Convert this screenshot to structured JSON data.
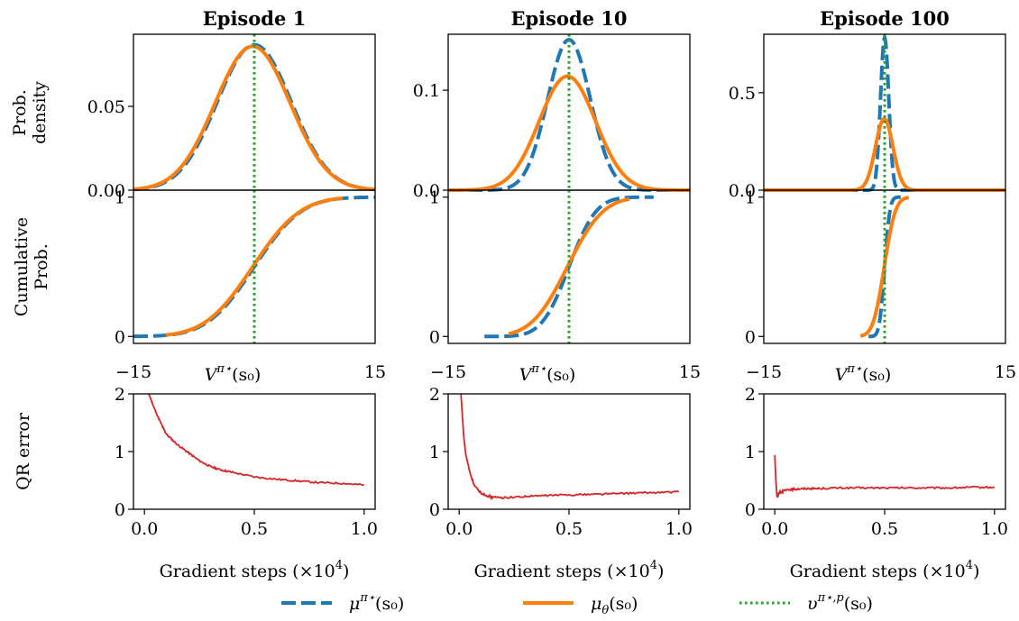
{
  "legend": {
    "items": [
      {
        "label": "μ^{π⋆}(s₀)",
        "main": "μ",
        "sup": "π⋆",
        "suffix": "(s₀)",
        "color": "#1f77b4",
        "style": "dashed"
      },
      {
        "label": "μ_θ(s₀)",
        "main": "μ",
        "sub": "θ",
        "suffix": "(s₀)",
        "color": "#ff7f0e",
        "style": "solid"
      },
      {
        "label": "υ^{π⋆,p}(s₀)",
        "main": "υ",
        "sup": "π⋆,p",
        "suffix": "(s₀)",
        "color": "#2ca02c",
        "style": "dotted"
      }
    ]
  },
  "row_labels": {
    "density": [
      "Prob.",
      "density"
    ],
    "cdf": [
      "Cumulative",
      "Prob."
    ],
    "qr": [
      "QR error"
    ]
  },
  "colors": {
    "blue": "#1f77b4",
    "orange": "#ff7f0e",
    "green": "#2ca02c",
    "red": "#d62728"
  },
  "chart_data": [
    {
      "type": "line",
      "title": "Episode 1",
      "density": {
        "ylim": [
          0,
          0.093
        ],
        "yticks": [
          0.0,
          0.05
        ],
        "ytick_labels": [
          "0.00",
          "0.05"
        ],
        "series": [
          {
            "color": "blue",
            "style": "dashed",
            "mean": 0.0,
            "std": 4.6
          },
          {
            "color": "orange",
            "style": "solid",
            "mean": -0.2,
            "std": 4.65
          }
        ]
      },
      "cdf": {
        "ylim": [
          -0.05,
          1.05
        ],
        "yticks": [
          0,
          1
        ],
        "ytick_labels": [
          "0",
          "1"
        ],
        "series": [
          {
            "color": "blue",
            "style": "dashed",
            "mean": 0.0,
            "std": 4.6,
            "range": [
              -15,
              15
            ]
          },
          {
            "color": "orange",
            "style": "solid",
            "mean": -0.2,
            "std": 4.65,
            "range": [
              -11,
              11
            ]
          }
        ]
      },
      "xlim": [
        -15,
        15
      ],
      "xtick_labels": [
        "−15",
        "15"
      ],
      "xlabel": {
        "main": "V",
        "sup": "π⋆",
        "suffix": "(s₀)"
      },
      "vline_x": 0.0,
      "qr": {
        "ylim": [
          0,
          2
        ],
        "yticks": [
          0,
          1,
          2
        ],
        "ytick_labels": [
          "0",
          "1",
          "2"
        ],
        "xlim": [
          -0.05,
          1.05
        ],
        "xticks": [
          0.0,
          0.5,
          1.0
        ],
        "xtick_labels": [
          "0.0",
          "0.5",
          "1.0"
        ],
        "xlabel": "Gradient steps (×10",
        "xlabel_sup": "4",
        "xlabel_end": ")",
        "x": [
          0.0,
          0.02,
          0.05,
          0.08,
          0.1,
          0.15,
          0.2,
          0.25,
          0.3,
          0.35,
          0.4,
          0.5,
          0.6,
          0.7,
          0.8,
          0.9,
          1.0
        ],
        "y": [
          2.3,
          2.0,
          1.7,
          1.45,
          1.3,
          1.12,
          0.98,
          0.84,
          0.74,
          0.68,
          0.64,
          0.56,
          0.52,
          0.49,
          0.46,
          0.45,
          0.42
        ]
      }
    },
    {
      "type": "line",
      "title": "Episode 10",
      "density": {
        "ylim": [
          0,
          0.156
        ],
        "yticks": [
          0.0,
          0.1
        ],
        "ytick_labels": [
          "0.0",
          "0.1"
        ],
        "series": [
          {
            "color": "blue",
            "style": "dashed",
            "mean": 0.0,
            "std": 2.65
          },
          {
            "color": "orange",
            "style": "solid",
            "mean": -0.2,
            "std": 3.5
          }
        ]
      },
      "cdf": {
        "ylim": [
          -0.05,
          1.05
        ],
        "yticks": [
          0,
          1
        ],
        "ytick_labels": [
          "0",
          "1"
        ],
        "series": [
          {
            "color": "blue",
            "style": "dashed",
            "mean": 0.0,
            "std": 2.65,
            "range": [
              -10.5,
              10.5
            ]
          },
          {
            "color": "orange",
            "style": "solid",
            "mean": -0.2,
            "std": 3.5,
            "range": [
              -7.5,
              7.5
            ]
          }
        ]
      },
      "xlim": [
        -15,
        15
      ],
      "xtick_labels": [
        "−15",
        "15"
      ],
      "xlabel": {
        "main": "V",
        "sup": "π⋆",
        "suffix": "(s₀)"
      },
      "vline_x": 0.0,
      "qr": {
        "ylim": [
          0,
          2
        ],
        "yticks": [
          0,
          1,
          2
        ],
        "ytick_labels": [
          "0",
          "1",
          "2"
        ],
        "xlim": [
          -0.05,
          1.05
        ],
        "xticks": [
          0.0,
          0.5,
          1.0
        ],
        "xtick_labels": [
          "0.0",
          "0.5",
          "1.0"
        ],
        "xlabel": "Gradient steps (×10",
        "xlabel_sup": "4",
        "xlabel_end": ")",
        "x": [
          0.0,
          0.01,
          0.02,
          0.03,
          0.05,
          0.07,
          0.1,
          0.13,
          0.15,
          0.2,
          0.3,
          0.4,
          0.5,
          0.6,
          0.7,
          0.8,
          0.9,
          1.0
        ],
        "y": [
          2.3,
          1.9,
          1.3,
          0.95,
          0.62,
          0.4,
          0.28,
          0.23,
          0.21,
          0.2,
          0.22,
          0.24,
          0.25,
          0.26,
          0.27,
          0.28,
          0.29,
          0.3
        ]
      }
    },
    {
      "type": "line",
      "title": "Episode 100",
      "density": {
        "ylim": [
          0,
          0.8
        ],
        "yticks": [
          0.0,
          0.5
        ],
        "ytick_labels": [
          "0.0",
          "0.5"
        ],
        "series": [
          {
            "color": "blue",
            "style": "dashed",
            "mean": 0.0,
            "std": 0.51
          },
          {
            "color": "orange",
            "style": "solid",
            "mean": -0.05,
            "std": 1.09
          }
        ]
      },
      "cdf": {
        "ylim": [
          -0.05,
          1.05
        ],
        "yticks": [
          0,
          1
        ],
        "ytick_labels": [
          "0",
          "1"
        ],
        "series": [
          {
            "color": "blue",
            "style": "dashed",
            "mean": 0.0,
            "std": 0.51,
            "range": [
              -2.0,
              2.0
            ]
          },
          {
            "color": "orange",
            "style": "solid",
            "mean": -0.05,
            "std": 1.09,
            "range": [
              -3.0,
              3.0
            ]
          }
        ]
      },
      "xlim": [
        -15,
        15
      ],
      "xtick_labels": [
        "−15",
        "15"
      ],
      "xlabel": {
        "main": "V",
        "sup": "π⋆",
        "suffix": "(s₀)"
      },
      "vline_x": 0.0,
      "qr": {
        "ylim": [
          0,
          2
        ],
        "yticks": [
          0,
          1,
          2
        ],
        "ytick_labels": [
          "0",
          "1",
          "2"
        ],
        "xlim": [
          -0.05,
          1.05
        ],
        "xticks": [
          0.0,
          0.5,
          1.0
        ],
        "xtick_labels": [
          "0.0",
          "0.5",
          "1.0"
        ],
        "xlabel": "Gradient steps (×10",
        "xlabel_sup": "4",
        "xlabel_end": ")",
        "x": [
          0.0,
          0.005,
          0.01,
          0.015,
          0.02,
          0.04,
          0.07,
          0.1,
          0.15,
          0.2,
          0.3,
          0.4,
          0.5,
          0.6,
          0.7,
          0.8,
          0.9,
          1.0
        ],
        "y": [
          0.95,
          0.5,
          0.22,
          0.25,
          0.28,
          0.32,
          0.34,
          0.35,
          0.36,
          0.36,
          0.37,
          0.37,
          0.37,
          0.37,
          0.37,
          0.37,
          0.38,
          0.38
        ]
      }
    }
  ]
}
